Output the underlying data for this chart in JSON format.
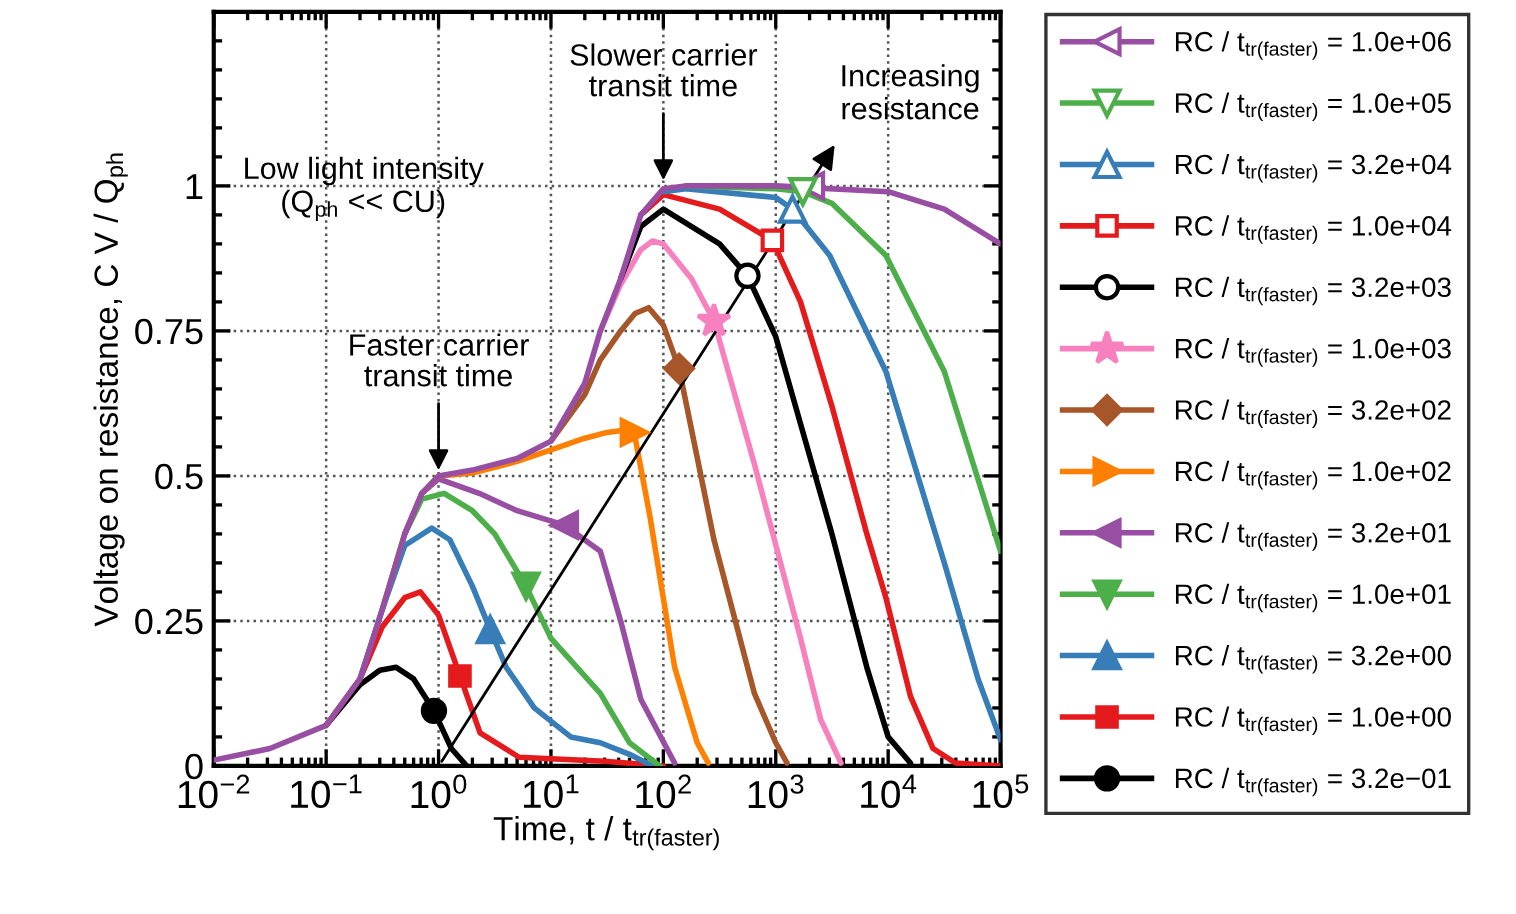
{
  "chart_data": {
    "type": "line",
    "xlabel": "Time, t / t$_{tr(faster)}$",
    "ylabel": "Voltage on resistance, C V / Q$_{ph}$",
    "log": "x",
    "xlim": [
      0.01,
      100000
    ],
    "xticks": [
      {
        "value": 0.01,
        "label": "10$^{−2}$"
      },
      {
        "value": 0.1,
        "label": "10$^{−1}$"
      },
      {
        "value": 1,
        "label": "10$^{0}$"
      },
      {
        "value": 10,
        "label": "10$^{1}$"
      },
      {
        "value": 100,
        "label": "10$^{2}$"
      },
      {
        "value": 1000,
        "label": "10$^{3}$"
      },
      {
        "value": 10000,
        "label": "10$^{4}$"
      },
      {
        "value": 100000,
        "label": "10$^{5}$"
      }
    ],
    "ylim": [
      0,
      1.3
    ],
    "yticks": [
      0,
      0.25,
      0.5,
      0.75,
      1
    ],
    "grid": true,
    "legend": "right",
    "annotations": [
      "Low light intensity\n(Q$_{ph}$ << CU)",
      {
        "text": "Faster carrier\ntransit time",
        "x": 1,
        "y": 0.5
      },
      {
        "text": "Slower carrier\ntransit time",
        "x": 100,
        "y": 1.0
      },
      "Increasing\nresistance"
    ],
    "series": [
      {
        "name": "RC / t$_{tr(faster)}$ = 1.0e+06",
        "color": "#984ea3",
        "x": [
          0.01,
          0.0316,
          0.1,
          0.2,
          0.316,
          0.5,
          0.71,
          1,
          2,
          5,
          10,
          20,
          27.5,
          41.7,
          63,
          100,
          158,
          1000,
          10000,
          31600,
          100000
        ],
        "values": [
          0.01,
          0.03,
          0.07,
          0.15,
          0.27,
          0.4,
          0.47,
          0.5,
          0.51,
          0.53,
          0.56,
          0.66,
          0.75,
          0.84,
          0.95,
          0.995,
          1.0,
          1.0,
          0.99,
          0.96,
          0.9
        ]
      },
      {
        "name": "RC / t$_{tr(faster)}$ = 1.0e+05",
        "color": "#4daf4a",
        "x": [
          158,
          1000,
          1740,
          3160,
          9550,
          31600,
          100000
        ],
        "values": [
          1.0,
          0.995,
          0.99,
          0.97,
          0.88,
          0.68,
          0.37
        ]
      },
      {
        "name": "RC / t$_{tr(faster)}$ = 3.2e+04",
        "color": "#377eb8",
        "x": [
          100,
          158,
          1000,
          1410,
          3020,
          9550,
          31600,
          63100,
          100000
        ],
        "values": [
          0.99,
          0.995,
          0.98,
          0.96,
          0.88,
          0.68,
          0.35,
          0.15,
          0.045
        ]
      },
      {
        "name": "RC / t$_{tr(faster)}$ = 1.0e+04",
        "color": "#e41a1c",
        "x": [
          63,
          100,
          316,
          933,
          1660,
          3160,
          6460,
          9550,
          15800,
          25100,
          39800,
          100000
        ],
        "values": [
          0.95,
          0.985,
          0.96,
          0.906,
          0.8,
          0.62,
          0.4,
          0.29,
          0.12,
          0.03,
          0.005,
          0
        ]
      },
      {
        "name": "RC / t$_{tr(faster)}$ = 3.2e+03",
        "color": "#000000",
        "x": [
          41.7,
          63,
          100,
          316,
          560,
          1000,
          1660,
          3160,
          6460,
          10000,
          15800
        ],
        "values": [
          0.84,
          0.93,
          0.96,
          0.9,
          0.845,
          0.74,
          0.59,
          0.4,
          0.17,
          0.05,
          0.005
        ]
      },
      {
        "name": "RC / t$_{tr(faster)}$ = 1.0e+03",
        "color": "#f781bf",
        "x": [
          27.5,
          41.7,
          63,
          80,
          100,
          178,
          282,
          646,
          1660,
          2510,
          3800
        ],
        "values": [
          0.75,
          0.83,
          0.89,
          0.905,
          0.9,
          0.84,
          0.767,
          0.52,
          0.22,
          0.08,
          0.005
        ]
      },
      {
        "name": "RC / t$_{tr(faster)}$ = 3.2e+02",
        "color": "#a65628",
        "x": [
          10,
          20,
          27.5,
          41.7,
          56,
          74,
          100,
          138,
          282,
          646,
          1000,
          1260
        ],
        "values": [
          0.56,
          0.64,
          0.7,
          0.75,
          0.78,
          0.79,
          0.76,
          0.685,
          0.39,
          0.125,
          0.04,
          0.005
        ]
      },
      {
        "name": "RC / t$_{tr(faster)}$ = 1.0e+02",
        "color": "#ff7f00",
        "x": [
          0.71,
          1,
          2,
          5,
          10,
          20,
          31.6,
          50,
          55,
          76,
          126,
          200,
          251
        ],
        "values": [
          0.47,
          0.5,
          0.505,
          0.525,
          0.545,
          0.565,
          0.575,
          0.58,
          0.575,
          0.43,
          0.17,
          0.04,
          0.005
        ]
      },
      {
        "name": "RC / t$_{tr(faster)}$ = 3.2e+01",
        "color": "#984ea3",
        "x": [
          0.5,
          0.71,
          1,
          2.3,
          5,
          13.2,
          27.5,
          41.7,
          63,
          126
        ],
        "values": [
          0.4,
          0.47,
          0.495,
          0.47,
          0.44,
          0.415,
          0.37,
          0.25,
          0.115,
          0.005
        ]
      },
      {
        "name": "RC / t$_{tr(faster)}$ = 1.0e+01",
        "color": "#4daf4a",
        "x": [
          0.316,
          0.5,
          0.71,
          1.12,
          2,
          3.16,
          6.0,
          10,
          27.5,
          50,
          93
        ],
        "values": [
          0.27,
          0.4,
          0.46,
          0.47,
          0.44,
          0.4,
          0.31,
          0.22,
          0.125,
          0.04,
          0
        ]
      },
      {
        "name": "RC / t$_{tr(faster)}$ = 3.2e+00",
        "color": "#377eb8",
        "x": [
          0.2,
          0.316,
          0.5,
          0.87,
          1.26,
          2,
          2.88,
          4.0,
          7.1,
          15,
          27.5,
          50,
          80
        ],
        "values": [
          0.15,
          0.27,
          0.38,
          0.41,
          0.39,
          0.31,
          0.235,
          0.17,
          0.1,
          0.05,
          0.04,
          0.02,
          0
        ]
      },
      {
        "name": "RC / t$_{tr(faster)}$ = 1.0e+00",
        "color": "#e41a1c",
        "x": [
          0.1,
          0.2,
          0.316,
          0.5,
          0.69,
          1,
          1.55,
          2.34,
          5.2,
          30,
          100
        ],
        "values": [
          0.07,
          0.15,
          0.24,
          0.29,
          0.3,
          0.26,
          0.155,
          0.057,
          0.015,
          0.008,
          0
        ]
      },
      {
        "name": "RC / t$_{tr(faster)}$ = 3.2e−01",
        "color": "#000000",
        "x": [
          0.1,
          0.2,
          0.3,
          0.42,
          0.6,
          0.91,
          1.3,
          1.78
        ],
        "values": [
          0.07,
          0.14,
          0.165,
          0.17,
          0.15,
          0.095,
          0.03,
          0
        ]
      },
      {
        "type": "scatter",
        "color": "#984ea3",
        "marker": "triangle-left-open",
        "x": [
          2040
        ],
        "values": [
          1.0
        ]
      },
      {
        "type": "scatter",
        "color": "#4daf4a",
        "marker": "triangle-down-open",
        "x": [
          1740
        ],
        "values": [
          0.99
        ]
      },
      {
        "type": "scatter",
        "color": "#377eb8",
        "marker": "triangle-open",
        "x": [
          1410
        ],
        "values": [
          0.96
        ]
      },
      {
        "type": "scatter",
        "color": "#e41a1c",
        "marker": "square-open",
        "x": [
          933
        ],
        "values": [
          0.906
        ]
      },
      {
        "type": "scatter",
        "color": "#000000",
        "marker": "circle-open",
        "x": [
          560
        ],
        "values": [
          0.845
        ]
      },
      {
        "type": "scatter",
        "color": "#f781bf",
        "marker": "star",
        "x": [
          282
        ],
        "values": [
          0.767
        ]
      },
      {
        "type": "scatter",
        "color": "#a65628",
        "marker": "diamond",
        "x": [
          138
        ],
        "values": [
          0.685
        ]
      },
      {
        "type": "scatter",
        "color": "#ff7f00",
        "marker": "triangle-right",
        "x": [
          55
        ],
        "values": [
          0.575
        ]
      },
      {
        "type": "scatter",
        "color": "#984ea3",
        "marker": "triangle-left",
        "x": [
          13.2
        ],
        "values": [
          0.415
        ]
      },
      {
        "type": "scatter",
        "color": "#4daf4a",
        "marker": "triangle-down",
        "x": [
          6.0
        ],
        "values": [
          0.31
        ]
      },
      {
        "type": "scatter",
        "color": "#377eb8",
        "marker": "triangle",
        "x": [
          2.88
        ],
        "values": [
          0.235
        ]
      },
      {
        "type": "scatter",
        "color": "#e41a1c",
        "marker": "square",
        "x": [
          1.55
        ],
        "values": [
          0.155
        ]
      },
      {
        "type": "scatter",
        "color": "#000000",
        "marker": "circle",
        "x": [
          0.91
        ],
        "values": [
          0.095
        ]
      }
    ]
  }
}
